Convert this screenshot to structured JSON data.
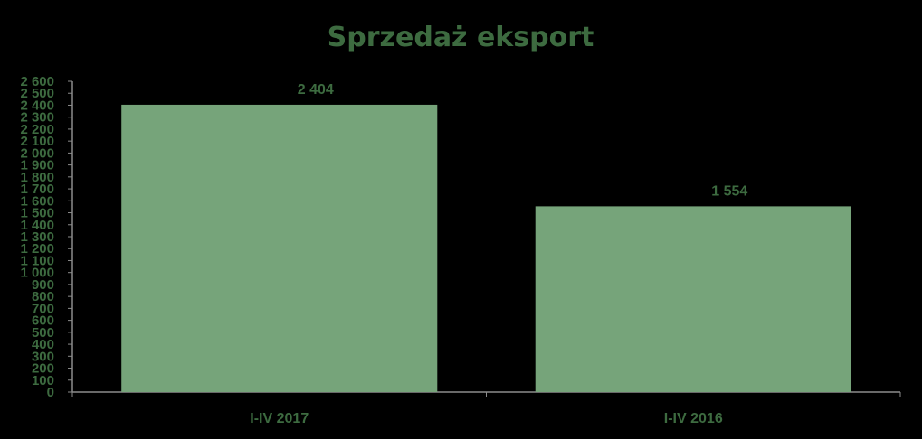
{
  "colors": {
    "background": "#000000",
    "bar": "#76a47a",
    "text": "#3d6b40",
    "axis": "#8c8c8c"
  },
  "chart_data": {
    "type": "bar",
    "title": "Sprzedaż eksport",
    "xlabel": "",
    "ylabel": "",
    "categories": [
      "I-IV 2017",
      "I-IV 2016"
    ],
    "values": [
      2404,
      1554
    ],
    "data_labels": [
      "2 404",
      "1 554"
    ],
    "ylim": [
      0,
      2600
    ],
    "ytick_step": 100,
    "ytick_labels": [
      "0",
      "100",
      "200",
      "300",
      "400",
      "500",
      "600",
      "700",
      "800",
      "900",
      "1 000",
      "1 100",
      "1 200",
      "1 300",
      "1 400",
      "1 500",
      "1 600",
      "1 700",
      "1 800",
      "1 900",
      "2 000",
      "2 100",
      "2 200",
      "2 300",
      "2 400",
      "2 500",
      "2 600"
    ],
    "grid": false,
    "legend": "none"
  }
}
